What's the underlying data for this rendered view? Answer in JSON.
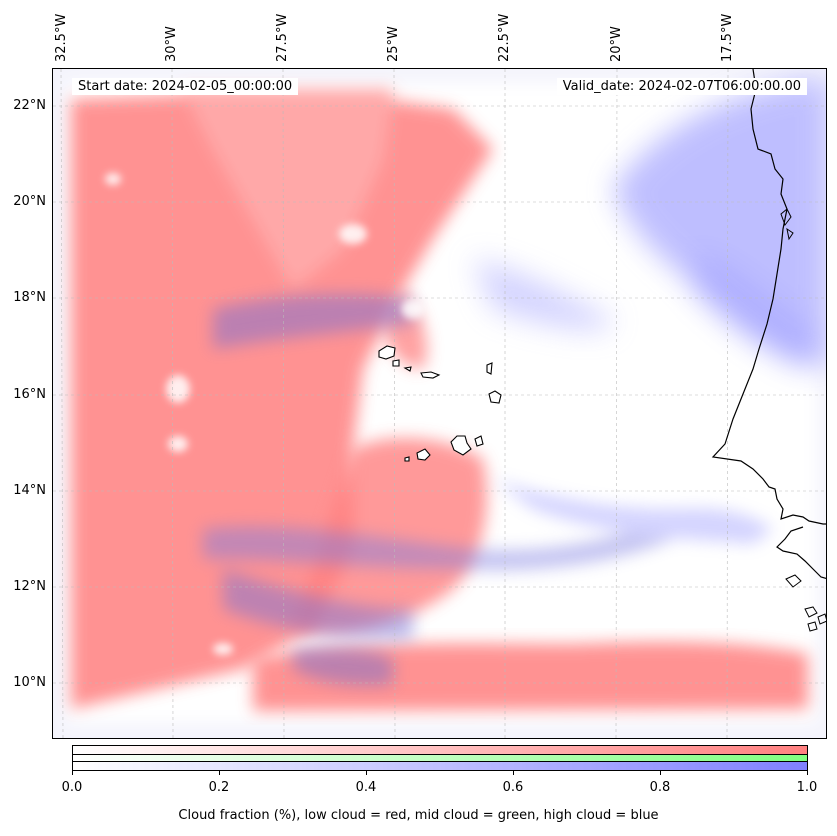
{
  "map": {
    "start_date_label": "Start date: 2024-02-05_00:00:00",
    "valid_date_label": "Valid_date: 2024-02-07T06:00:00.00",
    "lon_labels": [
      "32.5°W",
      "30°W",
      "27.5°W",
      "25°W",
      "22.5°W",
      "20°W",
      "17.5°W"
    ],
    "lat_labels": [
      "22°N",
      "20°N",
      "18°N",
      "16°N",
      "14°N",
      "12°N",
      "10°N"
    ],
    "layers": [
      "low cloud",
      "mid cloud",
      "high cloud"
    ],
    "layer_colors": {
      "low": "#ff8080",
      "mid": "#80ff80",
      "high": "#8080ff"
    }
  },
  "colorbar": {
    "ticks": [
      "0.0",
      "0.2",
      "0.4",
      "0.6",
      "0.8",
      "1.0"
    ],
    "caption": "Cloud fraction (%), low cloud = red, mid cloud = green, high cloud = blue"
  }
}
